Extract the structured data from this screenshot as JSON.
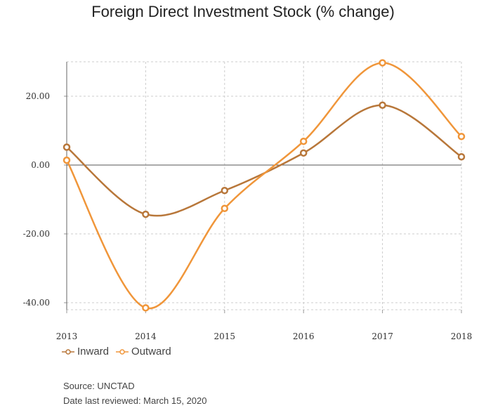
{
  "chart_data": {
    "type": "line",
    "title": "Foreign Direct Investment Stock (% change)",
    "x": [
      "2013",
      "2014",
      "2015",
      "2016",
      "2017",
      "2018"
    ],
    "ylim": [
      -42,
      30
    ],
    "yticks": [
      "20.00",
      "0.00",
      "-20.00",
      "-40.00"
    ],
    "grid": true,
    "legend_position": "bottom-left",
    "series": [
      {
        "name": "Inward",
        "color": "#b8773a",
        "values": [
          5.2,
          -14.3,
          -7.4,
          3.5,
          17.4,
          2.4
        ]
      },
      {
        "name": "Outward",
        "color": "#f0963a",
        "values": [
          1.4,
          -41.5,
          -12.6,
          6.9,
          29.7,
          8.3
        ]
      }
    ]
  },
  "footer": {
    "source": "Source: UNCTAD",
    "reviewed": "Date last reviewed: March 15, 2020"
  }
}
